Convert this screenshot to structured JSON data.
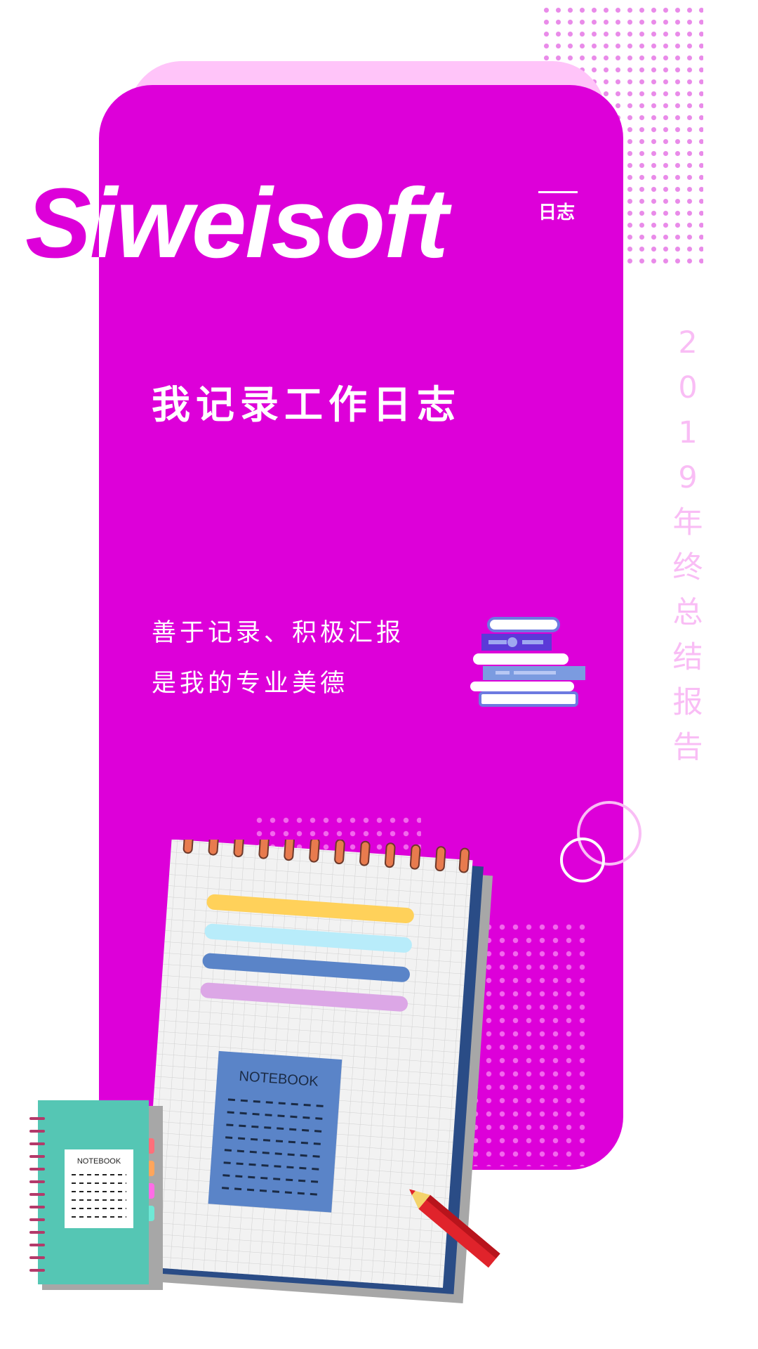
{
  "brand": {
    "name": "Siweisoft",
    "tag": "日志"
  },
  "headline": "我记录工作日志",
  "subtitle": {
    "line1": "善于记录、积极汇报",
    "line2": "是我的专业美德"
  },
  "side_title": [
    "2",
    "0",
    "1",
    "9",
    "年",
    "终",
    "总",
    "结",
    "报",
    "告"
  ],
  "illustration": {
    "notebook_label": "NOTEBOOK",
    "small_notebook_label": "NOTEBOOK"
  },
  "colors": {
    "magenta": "#dd00d9",
    "light_pink": "#ffc4f9",
    "dots": "#e98be9",
    "side_text": "#f9bdf5"
  }
}
